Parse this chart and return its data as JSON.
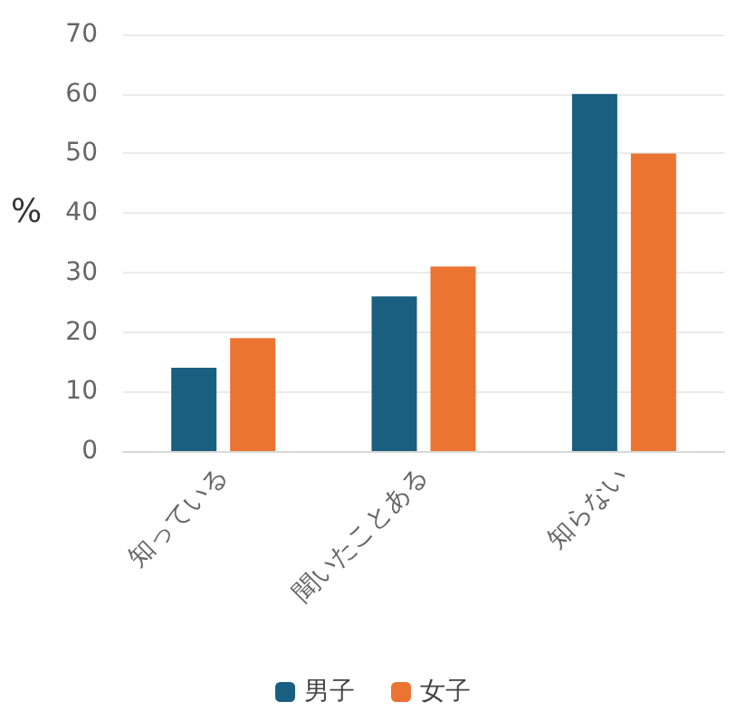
{
  "chart_data": {
    "type": "bar",
    "ylabel": "%",
    "categories": [
      "知っている",
      "聞いたことある",
      "知らない"
    ],
    "series": [
      {
        "name": "男子",
        "color": "#1a5f7f",
        "values": [
          14,
          26,
          60
        ]
      },
      {
        "name": "女子",
        "color": "#eb7432",
        "values": [
          19,
          31,
          50
        ]
      }
    ],
    "ylim": [
      0,
      70
    ],
    "yticks": [
      0,
      10,
      20,
      30,
      40,
      50,
      60,
      70
    ],
    "grid": "y",
    "legend": "bottom"
  }
}
